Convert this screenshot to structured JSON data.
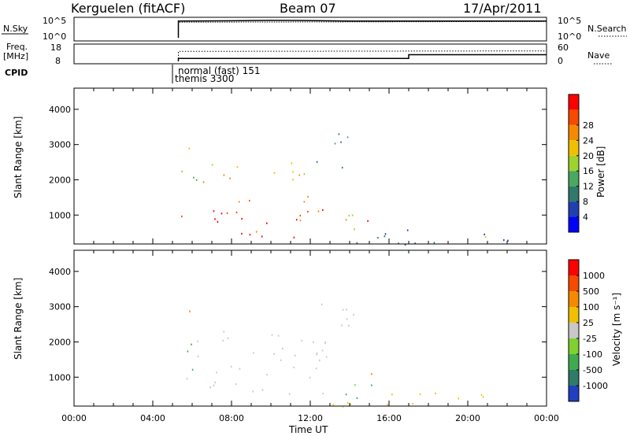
{
  "header": {
    "station": "Kerguelen (fitACF)",
    "beam": "Beam 07",
    "date": "17/Apr/2011"
  },
  "strip_panels": {
    "nsky": {
      "left_label": "N.Sky",
      "left_ticks": [
        "10^5",
        "10^0"
      ],
      "right_label": "N.Search",
      "right_ticks": [
        "10^5",
        "10^0"
      ]
    },
    "freq": {
      "left_label_1": "Freq.",
      "left_label_2": "[MHz]",
      "left_ticks": [
        "18",
        "8"
      ],
      "right_label": "Nave",
      "right_ticks": [
        "60",
        "0"
      ]
    },
    "cpid": {
      "label": "CPID",
      "annotations": [
        "normal (fast) 151",
        "themis 3300"
      ]
    }
  },
  "panels": [
    {
      "ylabel": "Slant Range [km]",
      "colorbar_label": "Power [dB]"
    },
    {
      "ylabel": "Slant Range [km]",
      "colorbar_label": "Velocity [m s⁻¹]"
    }
  ],
  "x_axis": {
    "title": "Time UT"
  },
  "colors": {
    "power": [
      "#0000ff",
      "#2040b0",
      "#2f7a68",
      "#4aa860",
      "#9fd22e",
      "#f0c000",
      "#f58a00",
      "#f54a00",
      "#ff0000"
    ],
    "velocity": [
      "#2040c0",
      "#2f7a68",
      "#3faa50",
      "#80d030",
      "#c8c8c8",
      "#f0c000",
      "#f58a00",
      "#f54a00",
      "#ff0000"
    ]
  },
  "chart_data": [
    {
      "type": "line",
      "title": "N.Sky / N.Search",
      "x_unit": "hours UT",
      "xlim": [
        0,
        24
      ],
      "series": [
        {
          "name": "N.Sky",
          "x": [
            0,
            5.3,
            5.3,
            8,
            10,
            12,
            14,
            24
          ],
          "y": [
            null,
            0,
            4.6,
            4.7,
            4.8,
            4.75,
            4.6,
            4.6
          ]
        },
        {
          "name": "N.Search",
          "x": [
            0,
            5.3,
            5.3,
            14,
            24
          ],
          "y": [
            null,
            0,
            4.3,
            4.4,
            4.5
          ]
        }
      ]
    },
    {
      "type": "line",
      "title": "Freq. / Nave",
      "x_unit": "hours UT",
      "xlim": [
        0,
        24
      ],
      "series": [
        {
          "name": "Freq. [MHz]",
          "x": [
            5.3,
            5.3,
            17,
            17,
            24
          ],
          "y": [
            8,
            10,
            10,
            12.5,
            12.5
          ]
        },
        {
          "name": "Nave",
          "x": [
            5.3,
            5.3,
            24
          ],
          "y": [
            0,
            40,
            42
          ]
        }
      ]
    },
    {
      "type": "table",
      "title": "CPID",
      "rows": [
        {
          "program": "normal (fast)",
          "cpid": 151,
          "start_hour": 5.3
        },
        {
          "program": "themis",
          "cpid": 3300,
          "start_hour": 5.3
        }
      ]
    },
    {
      "type": "heatmap",
      "title": "Power",
      "x_unit": "hours UT",
      "y_unit": "km",
      "xlabel": "Time UT",
      "ylabel": "Slant Range [km]",
      "xlim": [
        0,
        24
      ],
      "ylim": [
        180,
        4600
      ],
      "xticks": [
        "00:00",
        "04:00",
        "08:00",
        "12:00",
        "16:00",
        "20:00",
        "00:00"
      ],
      "yticks": [
        1000,
        2000,
        3000,
        4000
      ],
      "colorbar": {
        "label": "Power [dB]",
        "ticks": [
          4,
          8,
          12,
          16,
          20,
          24,
          28
        ],
        "range": [
          0,
          30
        ]
      },
      "regions": [
        {
          "x0": 5.3,
          "x1": 6.1,
          "y0": 2700,
          "y1": 3400,
          "value": 18
        },
        {
          "x0": 5.3,
          "x1": 6.2,
          "y0": 1200,
          "y1": 2400,
          "value": 12
        },
        {
          "x0": 5.4,
          "x1": 12.8,
          "y0": 700,
          "y1": 1700,
          "value": 26
        },
        {
          "x0": 5.8,
          "x1": 11.4,
          "y0": 320,
          "y1": 650,
          "value": 28
        },
        {
          "x0": 6.5,
          "x1": 12.2,
          "y0": 1700,
          "y1": 2500,
          "value": 20
        },
        {
          "x0": 10.6,
          "x1": 11.0,
          "y0": 3000,
          "y1": 3300,
          "value": 20
        },
        {
          "x0": 12.3,
          "x1": 14.2,
          "y0": 2200,
          "y1": 3500,
          "value": 8
        },
        {
          "x0": 13.6,
          "x1": 15.2,
          "y0": 400,
          "y1": 1300,
          "value": 16
        },
        {
          "x0": 14.4,
          "x1": 15.1,
          "y0": 700,
          "y1": 1000,
          "value": 24
        },
        {
          "x0": 13.0,
          "x1": 24,
          "y0": 180,
          "y1": 600,
          "value": 6
        },
        {
          "x0": 20.0,
          "x1": 21.2,
          "y0": 300,
          "y1": 500,
          "value": 18
        },
        {
          "x0": 18.8,
          "x1": 19.1,
          "y0": 1200,
          "y1": 1700,
          "value": 8
        }
      ]
    },
    {
      "type": "heatmap",
      "title": "Velocity",
      "x_unit": "hours UT",
      "y_unit": "km",
      "xlabel": "Time UT",
      "ylabel": "Slant Range [km]",
      "xlim": [
        0,
        24
      ],
      "ylim": [
        180,
        4600
      ],
      "xticks": [
        "00:00",
        "04:00",
        "08:00",
        "12:00",
        "16:00",
        "20:00",
        "00:00"
      ],
      "yticks": [
        1000,
        2000,
        3000,
        4000
      ],
      "colorbar": {
        "label": "Velocity [m s⁻¹]",
        "ticks": [
          1000,
          500,
          100,
          25,
          -25,
          -100,
          -500,
          -1000
        ]
      },
      "regions": [
        {
          "x0": 5.3,
          "x1": 6.1,
          "y0": 2700,
          "y1": 3400,
          "value": -150
        },
        {
          "x0": 5.3,
          "x1": 6.2,
          "y0": 1200,
          "y1": 2400,
          "value": 60
        },
        {
          "x0": 5.4,
          "x1": 12.8,
          "y0": 500,
          "y1": 2400,
          "value": 0
        },
        {
          "x0": 12.3,
          "x1": 14.2,
          "y0": 1500,
          "y1": 3500,
          "value": 0
        },
        {
          "x0": 13.6,
          "x1": 15.2,
          "y0": 400,
          "y1": 1300,
          "value": 50
        },
        {
          "x0": 14.4,
          "x1": 15.1,
          "y0": 800,
          "y1": 1200,
          "value": -150
        },
        {
          "x0": 13.0,
          "x1": 24,
          "y0": 180,
          "y1": 600,
          "value": -50
        }
      ]
    }
  ]
}
